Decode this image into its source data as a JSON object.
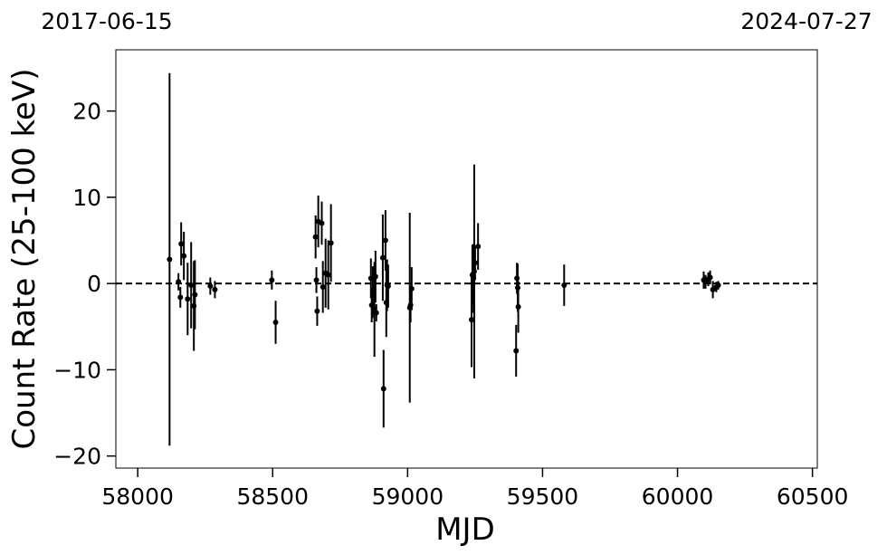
{
  "chart_data": {
    "type": "errorbar",
    "xlabel": "MJD",
    "ylabel": "Count Rate (25-100 keV)",
    "xlim": [
      57919,
      60518
    ],
    "ylim": [
      -21.4,
      27.1
    ],
    "xticks": [
      58000,
      58500,
      59000,
      59500,
      60000,
      60500
    ],
    "yticks": [
      {
        "value": -20,
        "label": "−20"
      },
      {
        "value": -10,
        "label": "−10"
      },
      0,
      10,
      20
    ],
    "x2ticks": [
      {
        "value": 57919,
        "label": "2017-06-15"
      },
      {
        "value": 60518,
        "label": "2024-07-27"
      }
    ],
    "hline": 0,
    "x": [
      58118,
      58151,
      58158,
      58161,
      58171,
      58185,
      58198,
      58208,
      58212,
      58269,
      58286,
      58497,
      58511,
      58659,
      58662,
      58665,
      58669,
      58682,
      58686,
      58696,
      58706,
      58716,
      58864,
      58867,
      58871,
      58877,
      58881,
      58884,
      58908,
      58911,
      58918,
      58921,
      58924,
      58928,
      59008,
      59011,
      59015,
      59237,
      59240,
      59244,
      59247,
      59250,
      59261,
      59402,
      59405,
      59408,
      59410,
      59580,
      60097,
      60104,
      60114,
      60121,
      60131,
      60144,
      60151
    ],
    "series": [
      {
        "color": "#000000",
        "values": [
          2.8,
          0.2,
          -1.6,
          4.6,
          3.2,
          -1.8,
          -0.2,
          -2.6,
          -1.3,
          -0.3,
          -0.7,
          0.4,
          -4.5,
          5.4,
          0.4,
          -3.2,
          7.2,
          7.0,
          -0.4,
          1.2,
          1.0,
          4.7,
          0.6,
          -2.5,
          -1.0,
          -3.0,
          0.8,
          -3.4,
          3.0,
          -12.2,
          5.0,
          -2.2,
          -0.2,
          -0.3,
          -2.8,
          -2.5,
          -0.6,
          -4.2,
          1.0,
          0.6,
          1.4,
          2.4,
          4.3,
          -7.8,
          0.6,
          -0.5,
          -2.7,
          -0.2,
          0.4,
          0.2,
          0.5,
          0.7,
          -0.7,
          -0.4,
          -0.2
        ],
        "errors": [
          21.6,
          1.0,
          1.2,
          2.5,
          2.8,
          4.2,
          5.0,
          5.2,
          4.0,
          1.0,
          1.0,
          1.1,
          2.5,
          2.5,
          1.5,
          1.7,
          3.0,
          2.5,
          3.0,
          4.0,
          4.0,
          4.5,
          2.3,
          2.0,
          3.0,
          5.5,
          3.0,
          1.0,
          5.0,
          4.5,
          3.5,
          4.0,
          3.0,
          2.5,
          11.0,
          2.0,
          2.5,
          5.5,
          3.5,
          4.0,
          12.4,
          2.0,
          2.7,
          3.0,
          1.8,
          2.8,
          3.0,
          2.4,
          1.0,
          0.8,
          0.8,
          0.8,
          1.0,
          0.6,
          0.5
        ]
      }
    ]
  }
}
